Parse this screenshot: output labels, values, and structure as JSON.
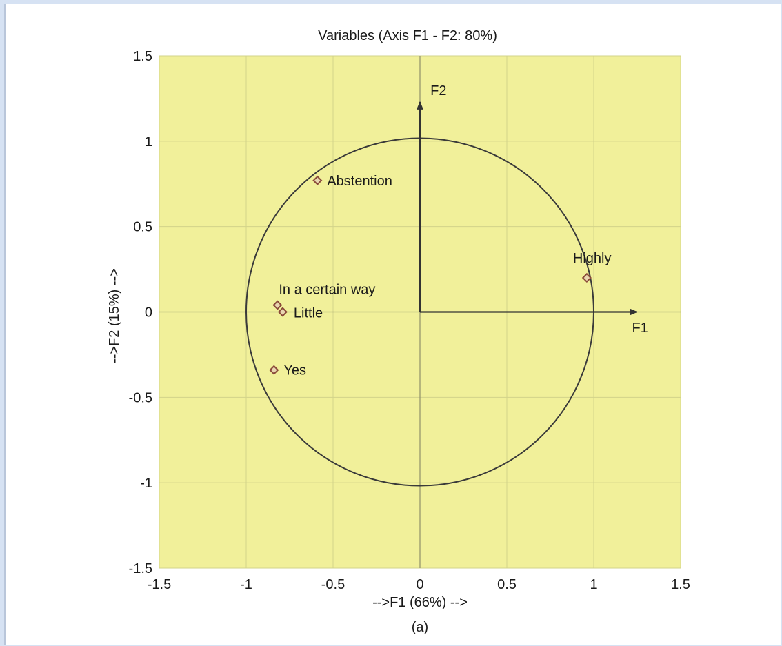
{
  "chart_data": {
    "type": "scatter",
    "title": "Variables (Axis F1 - F2: 80%)",
    "xlabel": "-->F1 (66%) -->",
    "ylabel": "-->F2 (15%) -->",
    "caption": "(a)",
    "xlim": [
      -1.5,
      1.5
    ],
    "ylim": [
      -1.5,
      1.5
    ],
    "x_ticks": [
      "-1.5",
      "-1",
      "-0.5",
      "0",
      "0.5",
      "1",
      "1.5"
    ],
    "y_ticks": [
      "1.5",
      "1",
      "0.5",
      "0",
      "-0.5",
      "-1",
      "-1.5"
    ],
    "grid": true,
    "unit_circle": true,
    "axis_arrows": {
      "x_label": "F1",
      "y_label": "F2"
    },
    "points": [
      {
        "label": "Abstention",
        "x": -0.59,
        "y": 0.77
      },
      {
        "label": "Highly",
        "x": 0.96,
        "y": 0.2
      },
      {
        "label": "In a certain way",
        "x": -0.82,
        "y": 0.04
      },
      {
        "label": "Little",
        "x": -0.79,
        "y": 0.0
      },
      {
        "label": "Yes",
        "x": -0.84,
        "y": -0.34
      }
    ],
    "colors": {
      "plot_background": "#f1f09a",
      "grid": "#d2d38a",
      "marker": "#8a4a3a",
      "marker_fill": "#e9d6b0"
    }
  }
}
